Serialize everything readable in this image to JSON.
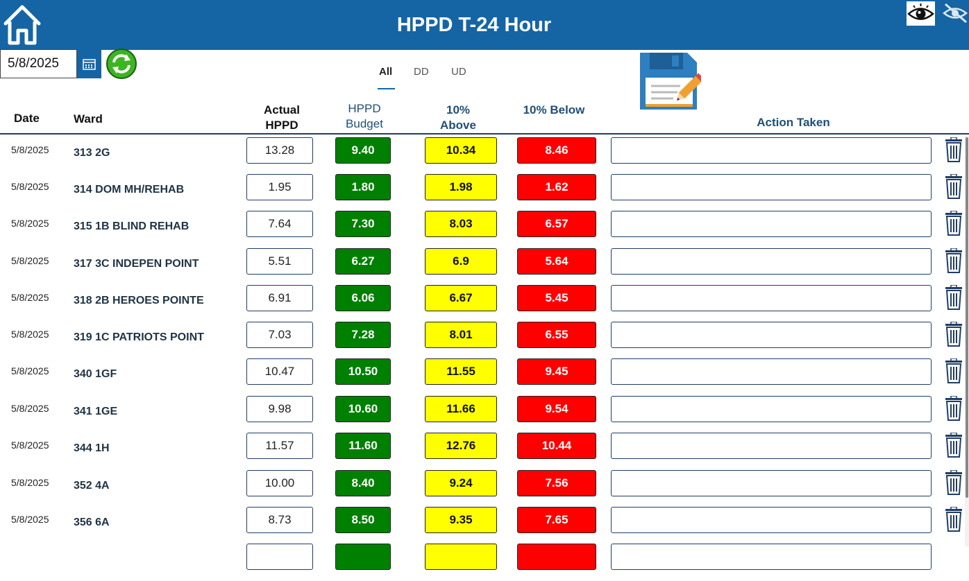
{
  "header": {
    "title": "HPPD T-24 Hour"
  },
  "icons": {
    "home": "home-icon",
    "view": "eye-icon",
    "hide": "eye-off-icon",
    "calendar": "calendar-icon",
    "refresh": "refresh-icon",
    "save": "floppy-save-icon",
    "delete": "trash-icon"
  },
  "filter": {
    "date": "5/8/2025"
  },
  "tabs": [
    {
      "label": "All",
      "active": true
    },
    {
      "label": "DD",
      "active": false
    },
    {
      "label": "UD",
      "active": false
    }
  ],
  "columns": {
    "date": "Date",
    "ward": "Ward",
    "actual": [
      "Actual",
      "HPPD"
    ],
    "budget": [
      "HPPD",
      "Budget"
    ],
    "above": [
      "10%",
      "Above"
    ],
    "below": "10% Below",
    "action": "Action Taken"
  },
  "colors": {
    "header": "#1565a5",
    "budget": "#008000",
    "above": "#ffff00",
    "below": "#ff0000",
    "heading_blue": "#1f4e79"
  },
  "rows": [
    {
      "date": "5/8/2025",
      "ward": "313 2G",
      "actual": "13.28",
      "budget": "9.40",
      "above": "10.34",
      "below": "8.46",
      "action": ""
    },
    {
      "date": "5/8/2025",
      "ward": "314 DOM MH/REHAB",
      "actual": "1.95",
      "budget": "1.80",
      "above": "1.98",
      "below": "1.62",
      "action": ""
    },
    {
      "date": "5/8/2025",
      "ward": "315 1B BLIND REHAB",
      "actual": "7.64",
      "budget": "7.30",
      "above": "8.03",
      "below": "6.57",
      "action": ""
    },
    {
      "date": "5/8/2025",
      "ward": "317 3C INDEPEN POINT",
      "actual": "5.51",
      "budget": "6.27",
      "above": "6.9",
      "below": "5.64",
      "action": ""
    },
    {
      "date": "5/8/2025",
      "ward": "318 2B HEROES POINTE",
      "actual": "6.91",
      "budget": "6.06",
      "above": "6.67",
      "below": "5.45",
      "action": ""
    },
    {
      "date": "5/8/2025",
      "ward": "319 1C PATRIOTS POINT",
      "actual": "7.03",
      "budget": "7.28",
      "above": "8.01",
      "below": "6.55",
      "action": ""
    },
    {
      "date": "5/8/2025",
      "ward": "340 1GF",
      "actual": "10.47",
      "budget": "10.50",
      "above": "11.55",
      "below": "9.45",
      "action": ""
    },
    {
      "date": "5/8/2025",
      "ward": "341 1GE",
      "actual": "9.98",
      "budget": "10.60",
      "above": "11.66",
      "below": "9.54",
      "action": ""
    },
    {
      "date": "5/8/2025",
      "ward": "344 1H",
      "actual": "11.57",
      "budget": "11.60",
      "above": "12.76",
      "below": "10.44",
      "action": ""
    },
    {
      "date": "5/8/2025",
      "ward": "352 4A",
      "actual": "10.00",
      "budget": "8.40",
      "above": "9.24",
      "below": "7.56",
      "action": ""
    },
    {
      "date": "5/8/2025",
      "ward": "356 6A",
      "actual": "8.73",
      "budget": "8.50",
      "above": "9.35",
      "below": "7.65",
      "action": ""
    }
  ]
}
